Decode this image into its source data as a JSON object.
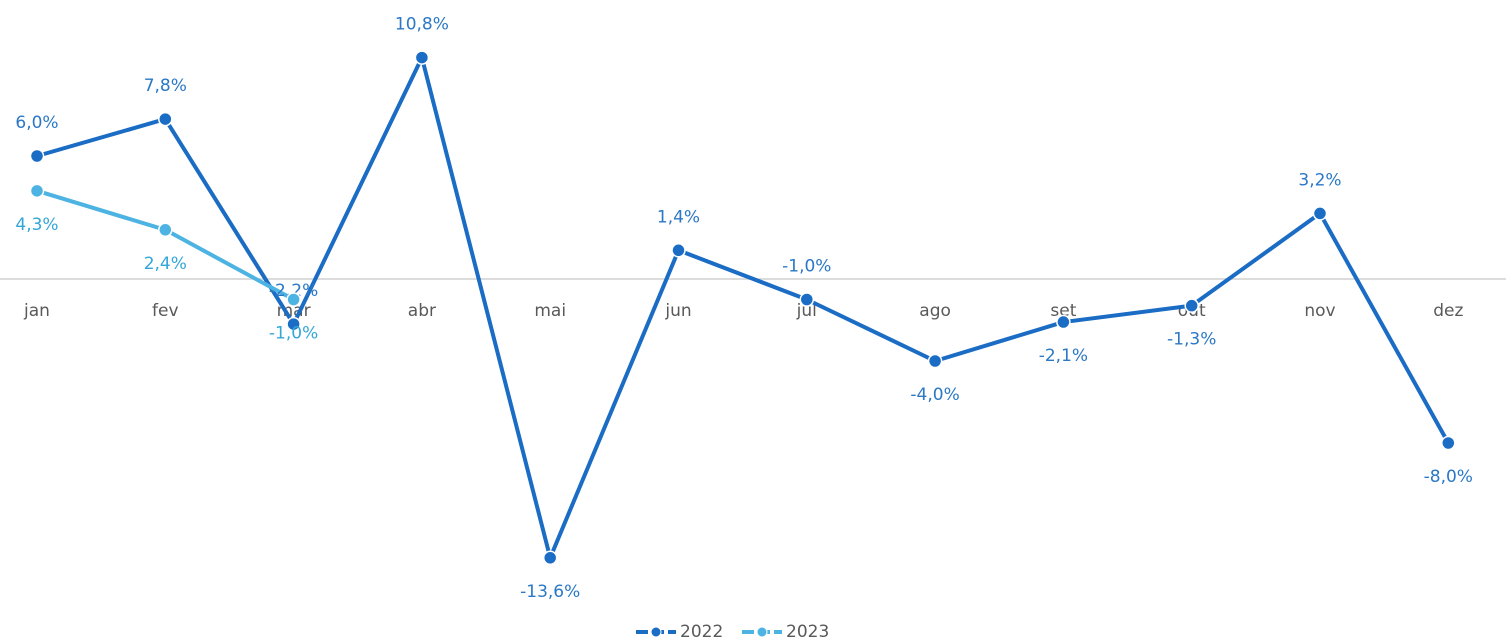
{
  "chart_data": {
    "type": "line",
    "categories": [
      "jan",
      "fev",
      "mar",
      "abr",
      "mai",
      "jun",
      "jul",
      "ago",
      "set",
      "out",
      "nov",
      "dez"
    ],
    "series": [
      {
        "name": "2022",
        "color": "#1a6cc4",
        "values": [
          6.0,
          7.8,
          -2.2,
          10.8,
          -13.6,
          1.4,
          -1.0,
          -4.0,
          -2.1,
          -1.3,
          3.2,
          -8.0
        ],
        "value_labels": [
          "6,0%",
          "7,8%",
          "-2,2%",
          "10,8%",
          "-13,6%",
          "1,4%",
          "-1,0%",
          "-4,0%",
          "-2,1%",
          "-1,3%",
          "3,2%",
          "-8,0%"
        ]
      },
      {
        "name": "2023",
        "color": "#4db3e2",
        "values": [
          4.3,
          2.4,
          -1.0,
          null,
          null,
          null,
          null,
          null,
          null,
          null,
          null,
          null
        ],
        "value_labels": [
          "4,3%",
          "2,4%",
          "-1,0%",
          null,
          null,
          null,
          null,
          null,
          null,
          null,
          null,
          null
        ]
      }
    ],
    "ylim": [
      -15,
      12
    ],
    "legend": "bottom"
  }
}
